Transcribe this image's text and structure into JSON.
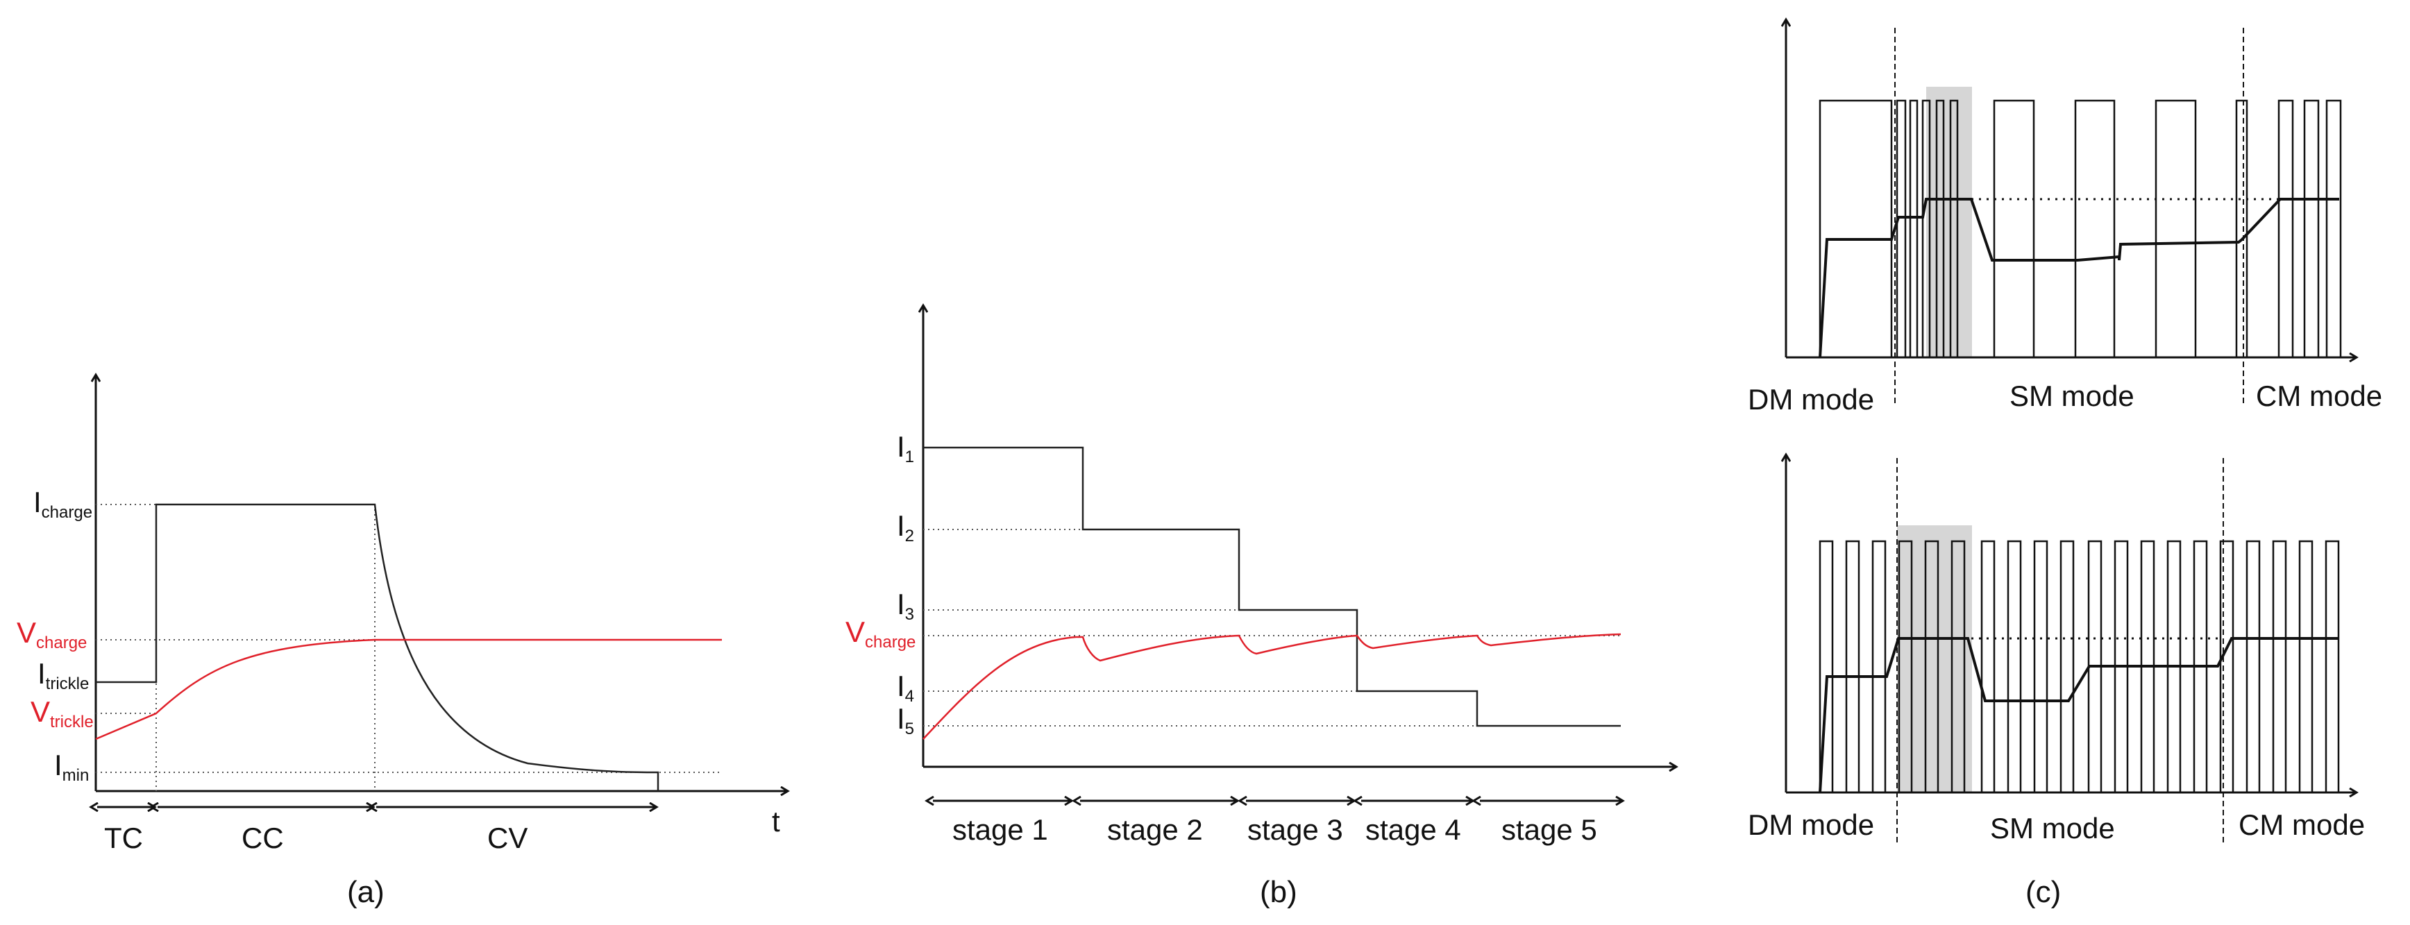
{
  "colors": {
    "ink": "#111111",
    "red": "#e0202a",
    "shade": "#d6d6d6",
    "thin": "#444444"
  },
  "panel_a": {
    "caption": "(a)",
    "y_labels": {
      "charge": {
        "main": "I",
        "sub": "charge"
      },
      "vcharge": {
        "main": "V",
        "sub": "charge"
      },
      "trickle": {
        "main": "I",
        "sub": "trickle"
      },
      "vtrickle": {
        "main": "V",
        "sub": "trickle"
      },
      "min": {
        "main": "I",
        "sub": "min"
      }
    },
    "x_label": "t",
    "segments": [
      "TC",
      "CC",
      "CV"
    ]
  },
  "panel_b": {
    "caption": "(b)",
    "levels": [
      {
        "main": "I",
        "sub": "1"
      },
      {
        "main": "I",
        "sub": "2"
      },
      {
        "main": "I",
        "sub": "3"
      },
      {
        "main": "I",
        "sub": "4"
      },
      {
        "main": "I",
        "sub": "5"
      }
    ],
    "vcharge": {
      "main": "V",
      "sub": "charge"
    },
    "stages": [
      "stage 1",
      "stage 2",
      "stage 3",
      "stage 4",
      "stage 5"
    ]
  },
  "panel_c": {
    "caption": "(c)",
    "top_modes": [
      "DM mode",
      "SM mode",
      "CM mode"
    ],
    "bottom_modes": [
      "DM mode",
      "SM mode",
      "CM mode"
    ]
  }
}
